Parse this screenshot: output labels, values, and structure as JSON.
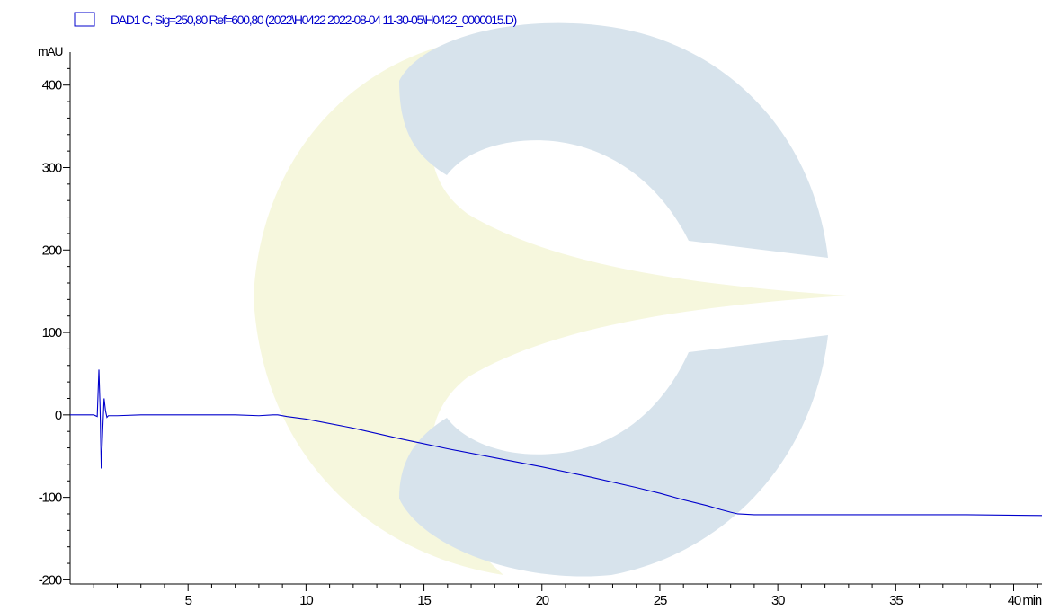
{
  "colors": {
    "trace": "#0000cc",
    "axis": "#000000",
    "watermark_blue": "#d7e3ec",
    "watermark_yellow": "#f6f7dd"
  },
  "watermark": {
    "icon": "lab-logo-watermark"
  },
  "chart_data": {
    "type": "line",
    "xlabel": "min",
    "ylabel": "mAU",
    "xlim": [
      0,
      41.2
    ],
    "ylim": [
      -205,
      440
    ],
    "x_ticks": [
      5,
      10,
      15,
      20,
      25,
      30,
      35,
      40
    ],
    "x_tick_labels": [
      "5",
      "10",
      "15",
      "20",
      "25",
      "30",
      "35",
      "40"
    ],
    "y_ticks": [
      -200,
      -100,
      0,
      100,
      200,
      300,
      400
    ],
    "y_tick_labels": [
      "-200",
      "-100",
      "0",
      "100",
      "200",
      "300",
      "400"
    ],
    "grid": false,
    "legend_position": "top-left",
    "series": [
      {
        "name": "DAD1 C, Sig=250,80 Ref=600,80 (2022\\H0422 2022-08-04 11-30-05\\H0422_0000015.D)",
        "x": [
          0,
          1.0,
          1.15,
          1.22,
          1.27,
          1.32,
          1.38,
          1.44,
          1.5,
          1.56,
          1.62,
          1.7,
          2.0,
          3.0,
          4.0,
          5.0,
          6.0,
          7.0,
          8.0,
          8.6,
          8.8,
          9.2,
          10,
          12,
          14,
          15,
          16,
          18,
          20,
          22,
          24,
          25,
          26,
          27,
          27.6,
          28.0,
          28.3,
          29,
          30,
          32,
          35,
          38,
          41.2
        ],
        "y": [
          0,
          0,
          -2,
          55,
          10,
          -65,
          -20,
          20,
          5,
          -3,
          -1,
          -1,
          -1,
          0,
          0,
          0,
          0,
          0,
          -1,
          0,
          0,
          -2,
          -5,
          -16,
          -29,
          -35,
          -41,
          -52,
          -63,
          -75,
          -88,
          -95,
          -103,
          -110,
          -115,
          -118,
          -120,
          -121,
          -121,
          -121,
          -121,
          -121,
          -122
        ]
      }
    ]
  }
}
